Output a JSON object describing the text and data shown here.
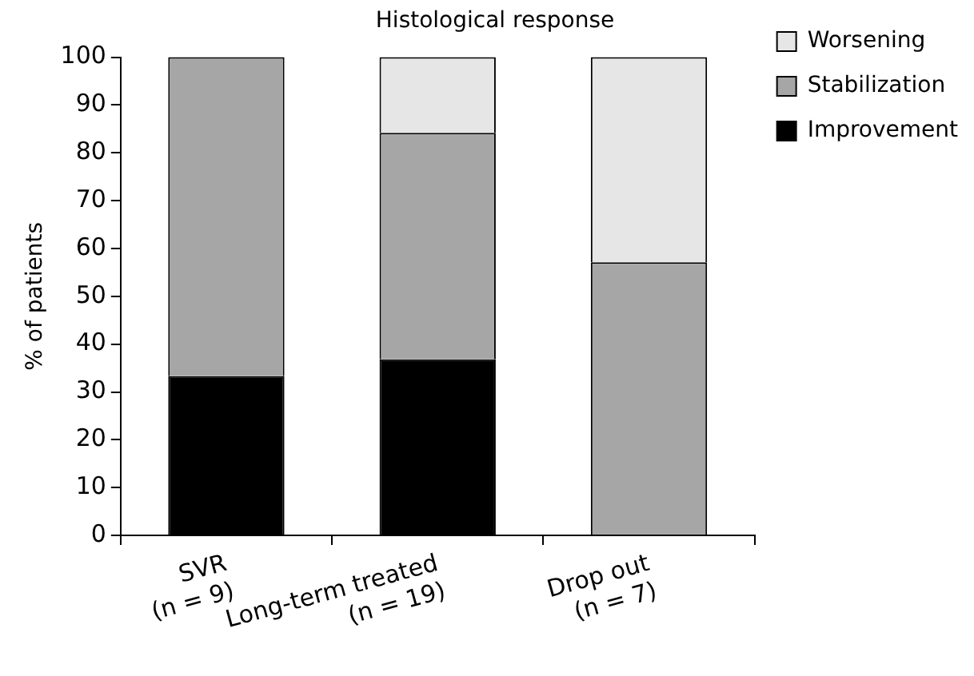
{
  "chart_data": {
    "type": "bar",
    "title": "Histological response",
    "ylabel": "% of patients",
    "categories": [
      "SVR\n(n = 9)",
      "Long-term treated\n(n = 19)",
      "Drop out\n(n = 7)"
    ],
    "stacked": true,
    "ylim": [
      0,
      100
    ],
    "yticks": [
      0,
      10,
      20,
      30,
      40,
      50,
      60,
      70,
      80,
      90,
      100
    ],
    "grid": false,
    "legend": "right",
    "series": [
      {
        "name": "Improvement",
        "color": "#000000",
        "values": [
          33.3,
          36.8,
          0
        ]
      },
      {
        "name": "Stabilization",
        "color": "#a6a6a6",
        "values": [
          66.7,
          47.4,
          57.1
        ]
      },
      {
        "name": "Worsening",
        "color": "#e6e6e6",
        "values": [
          0,
          15.8,
          42.9
        ]
      }
    ]
  }
}
